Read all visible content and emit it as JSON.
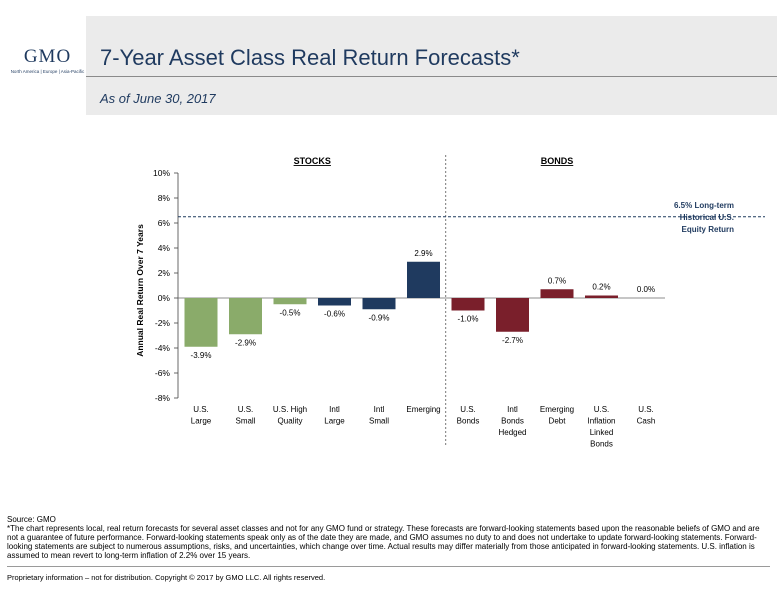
{
  "logo": {
    "name": "GMO",
    "tagline": "North America | Europe | Asia-Pacific"
  },
  "header": {
    "title": "7-Year Asset Class Real Return Forecasts*",
    "subtitle": "As of June 30, 2017"
  },
  "chart_data": {
    "type": "bar",
    "ylabel": "Annual Real Return Over 7 Years",
    "ylim": [
      -8,
      10
    ],
    "yticks": [
      -8,
      -6,
      -4,
      -2,
      0,
      2,
      4,
      6,
      8,
      10
    ],
    "ytick_labels": [
      "-8%",
      "-6%",
      "-4%",
      "-2%",
      "0%",
      "2%",
      "4%",
      "6%",
      "8%",
      "10%"
    ],
    "groups": [
      {
        "label": "STOCKS",
        "color": "#8aab6a"
      },
      {
        "label": "BONDS",
        "color": "#7a1f2b"
      }
    ],
    "categories": [
      {
        "label": [
          "U.S.",
          "Large"
        ],
        "group": 0,
        "value": -3.9,
        "value_label": "-3.9%",
        "color": "#8aab6a"
      },
      {
        "label": [
          "U.S.",
          "Small"
        ],
        "group": 0,
        "value": -2.9,
        "value_label": "-2.9%",
        "color": "#8aab6a"
      },
      {
        "label": [
          "U.S. High",
          "Quality"
        ],
        "group": 0,
        "value": -0.5,
        "value_label": "-0.5%",
        "color": "#8aab6a"
      },
      {
        "label": [
          "Intl",
          "Large"
        ],
        "group": 0,
        "value": -0.6,
        "value_label": "-0.6%",
        "color": "#1f3a5f"
      },
      {
        "label": [
          "Intl",
          "Small"
        ],
        "group": 0,
        "value": -0.9,
        "value_label": "-0.9%",
        "color": "#1f3a5f"
      },
      {
        "label": [
          "Emerging"
        ],
        "group": 0,
        "value": 2.9,
        "value_label": "2.9%",
        "color": "#1f3a5f"
      },
      {
        "label": [
          "U.S.",
          "Bonds"
        ],
        "group": 1,
        "value": -1.0,
        "value_label": "-1.0%",
        "color": "#7a1f2b"
      },
      {
        "label": [
          "Intl",
          "Bonds",
          "Hedged"
        ],
        "group": 1,
        "value": -2.7,
        "value_label": "-2.7%",
        "color": "#7a1f2b"
      },
      {
        "label": [
          "Emerging",
          "Debt"
        ],
        "group": 1,
        "value": 0.7,
        "value_label": "0.7%",
        "color": "#7a1f2b"
      },
      {
        "label": [
          "U.S.",
          "Inflation",
          "Linked",
          "Bonds"
        ],
        "group": 1,
        "value": 0.2,
        "value_label": "0.2%",
        "color": "#7a1f2b"
      },
      {
        "label": [
          "U.S.",
          "Cash"
        ],
        "group": 1,
        "value": 0.0,
        "value_label": "0.0%",
        "color": "#7a1f2b"
      }
    ],
    "reference_line": {
      "value": 6.5,
      "label": [
        "6.5% Long-term",
        "Historical U.S.",
        "Equity Return"
      ],
      "color": "#1f3a5f",
      "style": "dashed"
    },
    "group_divider": {
      "style": "dashed"
    }
  },
  "source": "Source: GMO",
  "footnote": "*The chart represents local, real return forecasts for several asset classes and not for any GMO fund or strategy. These forecasts are forward-looking statements based upon the reasonable beliefs of GMO and are not a guarantee of future performance. Forward-looking statements speak only as of the date they are made, and GMO assumes no duty to and does not undertake to update forward-looking statements. Forward-looking statements are subject to numerous assumptions, risks, and uncertainties, which change over time. Actual results may differ materially from those anticipated in forward-looking statements. U.S. inflation is assumed to mean revert to long-term inflation of 2.2% over 15 years.",
  "footer": "Proprietary information – not for distribution. Copyright © 2017 by GMO LLC. All rights reserved."
}
